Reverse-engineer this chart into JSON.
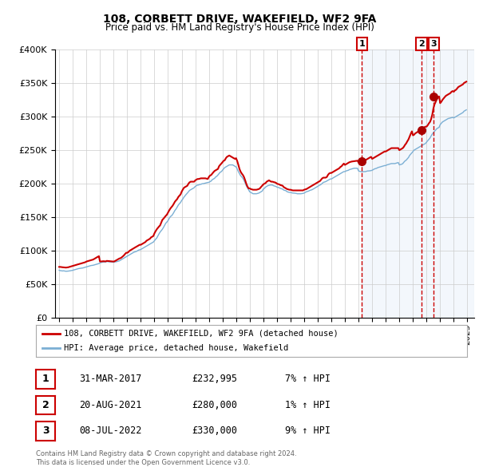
{
  "title": "108, CORBETT DRIVE, WAKEFIELD, WF2 9FA",
  "subtitle": "Price paid vs. HM Land Registry's House Price Index (HPI)",
  "ylim": [
    0,
    400000
  ],
  "yticks": [
    0,
    50000,
    100000,
    150000,
    200000,
    250000,
    300000,
    350000,
    400000
  ],
  "ytick_labels": [
    "£0",
    "£50K",
    "£100K",
    "£150K",
    "£200K",
    "£250K",
    "£300K",
    "£350K",
    "£400K"
  ],
  "xlim_start": 1994.7,
  "xlim_end": 2025.5,
  "xticks": [
    1995,
    1996,
    1997,
    1998,
    1999,
    2000,
    2001,
    2002,
    2003,
    2004,
    2005,
    2006,
    2007,
    2008,
    2009,
    2010,
    2011,
    2012,
    2013,
    2014,
    2015,
    2016,
    2017,
    2018,
    2019,
    2020,
    2021,
    2022,
    2023,
    2024,
    2025
  ],
  "price_color": "#cc0000",
  "hpi_color": "#7bafd4",
  "hpi_fill_color": "#ddeeff",
  "sale_marker_color": "#aa0000",
  "vline_color1": "#cc0000",
  "vline_color23": "#cc0000",
  "annotation_box_color": "#cc0000",
  "background_color": "#ffffff",
  "chart_bg_shaded": "#e8f0fa",
  "grid_color": "#cccccc",
  "sale1_x": 2017.25,
  "sale1_y": 232995,
  "sale1_label": "1",
  "sale1_date": "31-MAR-2017",
  "sale1_price": "£232,995",
  "sale1_hpi": "7% ↑ HPI",
  "sale2_x": 2021.63,
  "sale2_y": 280000,
  "sale2_label": "2",
  "sale2_date": "20-AUG-2021",
  "sale2_price": "£280,000",
  "sale2_hpi": "1% ↑ HPI",
  "sale3_x": 2022.52,
  "sale3_y": 330000,
  "sale3_label": "3",
  "sale3_date": "08-JUL-2022",
  "sale3_price": "£330,000",
  "sale3_hpi": "9% ↑ HPI",
  "legend_line1": "108, CORBETT DRIVE, WAKEFIELD, WF2 9FA (detached house)",
  "legend_line2": "HPI: Average price, detached house, Wakefield",
  "footer_line1": "Contains HM Land Registry data © Crown copyright and database right 2024.",
  "footer_line2": "This data is licensed under the Open Government Licence v3.0.",
  "hpi_data_years": [
    1995.0,
    1995.08,
    1995.17,
    1995.25,
    1995.33,
    1995.42,
    1995.5,
    1995.58,
    1995.67,
    1995.75,
    1995.83,
    1995.92,
    1996.0,
    1996.08,
    1996.17,
    1996.25,
    1996.33,
    1996.42,
    1996.5,
    1996.58,
    1996.67,
    1996.75,
    1996.83,
    1996.92,
    1997.0,
    1997.08,
    1997.17,
    1997.25,
    1997.33,
    1997.42,
    1997.5,
    1997.58,
    1997.67,
    1997.75,
    1997.83,
    1997.92,
    1998.0,
    1998.08,
    1998.17,
    1998.25,
    1998.33,
    1998.42,
    1998.5,
    1998.58,
    1998.67,
    1998.75,
    1998.83,
    1998.92,
    1999.0,
    1999.08,
    1999.17,
    1999.25,
    1999.33,
    1999.42,
    1999.5,
    1999.58,
    1999.67,
    1999.75,
    1999.83,
    1999.92,
    2000.0,
    2000.08,
    2000.17,
    2000.25,
    2000.33,
    2000.42,
    2000.5,
    2000.58,
    2000.67,
    2000.75,
    2000.83,
    2000.92,
    2001.0,
    2001.08,
    2001.17,
    2001.25,
    2001.33,
    2001.42,
    2001.5,
    2001.58,
    2001.67,
    2001.75,
    2001.83,
    2001.92,
    2002.0,
    2002.08,
    2002.17,
    2002.25,
    2002.33,
    2002.42,
    2002.5,
    2002.58,
    2002.67,
    2002.75,
    2002.83,
    2002.92,
    2003.0,
    2003.08,
    2003.17,
    2003.25,
    2003.33,
    2003.42,
    2003.5,
    2003.58,
    2003.67,
    2003.75,
    2003.83,
    2003.92,
    2004.0,
    2004.08,
    2004.17,
    2004.25,
    2004.33,
    2004.42,
    2004.5,
    2004.58,
    2004.67,
    2004.75,
    2004.83,
    2004.92,
    2005.0,
    2005.08,
    2005.17,
    2005.25,
    2005.33,
    2005.42,
    2005.5,
    2005.58,
    2005.67,
    2005.75,
    2005.83,
    2005.92,
    2006.0,
    2006.08,
    2006.17,
    2006.25,
    2006.33,
    2006.42,
    2006.5,
    2006.58,
    2006.67,
    2006.75,
    2006.83,
    2006.92,
    2007.0,
    2007.08,
    2007.17,
    2007.25,
    2007.33,
    2007.42,
    2007.5,
    2007.58,
    2007.67,
    2007.75,
    2007.83,
    2007.92,
    2008.0,
    2008.08,
    2008.17,
    2008.25,
    2008.33,
    2008.42,
    2008.5,
    2008.58,
    2008.67,
    2008.75,
    2008.83,
    2008.92,
    2009.0,
    2009.08,
    2009.17,
    2009.25,
    2009.33,
    2009.42,
    2009.5,
    2009.58,
    2009.67,
    2009.75,
    2009.83,
    2009.92,
    2010.0,
    2010.08,
    2010.17,
    2010.25,
    2010.33,
    2010.42,
    2010.5,
    2010.58,
    2010.67,
    2010.75,
    2010.83,
    2010.92,
    2011.0,
    2011.08,
    2011.17,
    2011.25,
    2011.33,
    2011.42,
    2011.5,
    2011.58,
    2011.67,
    2011.75,
    2011.83,
    2011.92,
    2012.0,
    2012.08,
    2012.17,
    2012.25,
    2012.33,
    2012.42,
    2012.5,
    2012.58,
    2012.67,
    2012.75,
    2012.83,
    2012.92,
    2013.0,
    2013.08,
    2013.17,
    2013.25,
    2013.33,
    2013.42,
    2013.5,
    2013.58,
    2013.67,
    2013.75,
    2013.83,
    2013.92,
    2014.0,
    2014.08,
    2014.17,
    2014.25,
    2014.33,
    2014.42,
    2014.5,
    2014.58,
    2014.67,
    2014.75,
    2014.83,
    2014.92,
    2015.0,
    2015.08,
    2015.17,
    2015.25,
    2015.33,
    2015.42,
    2015.5,
    2015.58,
    2015.67,
    2015.75,
    2015.83,
    2015.92,
    2016.0,
    2016.08,
    2016.17,
    2016.25,
    2016.33,
    2016.42,
    2016.5,
    2016.58,
    2016.67,
    2016.75,
    2016.83,
    2016.92,
    2017.0,
    2017.08,
    2017.17,
    2017.25,
    2017.33,
    2017.42,
    2017.5,
    2017.58,
    2017.67,
    2017.75,
    2017.83,
    2017.92,
    2018.0,
    2018.08,
    2018.17,
    2018.25,
    2018.33,
    2018.42,
    2018.5,
    2018.58,
    2018.67,
    2018.75,
    2018.83,
    2018.92,
    2019.0,
    2019.08,
    2019.17,
    2019.25,
    2019.33,
    2019.42,
    2019.5,
    2019.58,
    2019.67,
    2019.75,
    2019.83,
    2019.92,
    2020.0,
    2020.08,
    2020.17,
    2020.25,
    2020.33,
    2020.42,
    2020.5,
    2020.58,
    2020.67,
    2020.75,
    2020.83,
    2020.92,
    2021.0,
    2021.08,
    2021.17,
    2021.25,
    2021.33,
    2021.42,
    2021.5,
    2021.58,
    2021.67,
    2021.75,
    2021.83,
    2021.92,
    2022.0,
    2022.08,
    2022.17,
    2022.25,
    2022.33,
    2022.42,
    2022.5,
    2022.58,
    2022.67,
    2022.75,
    2022.83,
    2022.92,
    2023.0,
    2023.08,
    2023.17,
    2023.25,
    2023.33,
    2023.42,
    2023.5,
    2023.58,
    2023.67,
    2023.75,
    2023.83,
    2023.92,
    2024.0,
    2024.08,
    2024.17,
    2024.25,
    2024.33,
    2024.42,
    2024.5,
    2024.58,
    2024.67,
    2024.75,
    2024.83,
    2024.92
  ],
  "hpi_data_values": [
    71000,
    70500,
    70200,
    70000,
    70200,
    69800,
    69500,
    69600,
    69800,
    70000,
    70300,
    70600,
    71000,
    71500,
    72000,
    72500,
    73000,
    73500,
    73800,
    74000,
    74200,
    74500,
    75000,
    75500,
    76000,
    76500,
    77000,
    77500,
    78000,
    78300,
    78500,
    79000,
    79500,
    80000,
    80500,
    81000,
    82000,
    82500,
    83000,
    83200,
    83300,
    83500,
    84000,
    83800,
    83700,
    83500,
    83300,
    83100,
    83000,
    83300,
    83600,
    84000,
    84500,
    85000,
    86000,
    87000,
    88000,
    89000,
    90000,
    91000,
    92000,
    93000,
    94000,
    95000,
    96000,
    97000,
    98000,
    98500,
    99000,
    100000,
    101000,
    101500,
    102000,
    103000,
    104000,
    105000,
    106000,
    107000,
    108000,
    109000,
    110000,
    111000,
    112000,
    113000,
    115000,
    117000,
    119000,
    122000,
    125000,
    128000,
    130000,
    132000,
    135000,
    138000,
    141000,
    143000,
    145000,
    148000,
    151000,
    152000,
    154000,
    157000,
    160000,
    162000,
    165000,
    168000,
    170000,
    172000,
    175000,
    177000,
    180000,
    182000,
    184000,
    186000,
    188000,
    190000,
    191000,
    192000,
    193000,
    194000,
    196000,
    197000,
    198000,
    198000,
    199000,
    199000,
    200000,
    200000,
    200500,
    201000,
    201500,
    201800,
    202000,
    203000,
    204000,
    206000,
    207000,
    208000,
    210000,
    211000,
    213000,
    215000,
    217000,
    218000,
    220000,
    222000,
    224000,
    225000,
    226000,
    227000,
    228000,
    228000,
    228000,
    228000,
    227000,
    226000,
    225000,
    222000,
    218000,
    215000,
    212000,
    210000,
    208000,
    205000,
    201000,
    197000,
    194000,
    191000,
    188000,
    187000,
    186000,
    185000,
    185000,
    185000,
    185000,
    185500,
    186000,
    187000,
    188000,
    189000,
    192000,
    193000,
    195000,
    196000,
    197000,
    197500,
    198000,
    198000,
    198000,
    197000,
    196500,
    196000,
    195000,
    194500,
    194000,
    193000,
    192500,
    192000,
    190500,
    190000,
    189500,
    188000,
    187500,
    187000,
    187000,
    186500,
    186000,
    186000,
    185800,
    185500,
    185000,
    185000,
    185000,
    185000,
    185200,
    185500,
    186000,
    187000,
    188000,
    188500,
    189000,
    190000,
    190500,
    191000,
    192000,
    193000,
    194000,
    195000,
    196000,
    197000,
    198000,
    199000,
    200500,
    202000,
    202500,
    203000,
    204000,
    205000,
    206000,
    207000,
    207000,
    208000,
    209000,
    210000,
    211000,
    212000,
    213000,
    214000,
    215000,
    216000,
    217000,
    218000,
    218000,
    219000,
    219500,
    220000,
    221000,
    221500,
    222000,
    222500,
    223000,
    223000,
    223000,
    223000,
    219000,
    218500,
    218000,
    218000,
    218000,
    218000,
    218000,
    218500,
    219000,
    219000,
    219200,
    219500,
    220000,
    221000,
    222000,
    222500,
    223000,
    224000,
    224500,
    225000,
    225500,
    226000,
    226500,
    227000,
    227000,
    228000,
    228500,
    229000,
    229500,
    230000,
    230000,
    230000,
    230000,
    230500,
    231000,
    231500,
    228000,
    228500,
    229000,
    230000,
    232000,
    234000,
    235000,
    237000,
    239000,
    242000,
    244000,
    246000,
    248000,
    250000,
    251000,
    252000,
    253000,
    254000,
    255000,
    256000,
    257000,
    258000,
    259000,
    260000,
    262000,
    264000,
    266000,
    268000,
    271000,
    274000,
    276000,
    278000,
    280000,
    282000,
    283000,
    284000,
    288000,
    290000,
    292000,
    293000,
    294000,
    295000,
    296000,
    297000,
    297500,
    298000,
    298500,
    298800,
    298000,
    299000,
    300000,
    301000,
    302000,
    303000,
    304000,
    305000,
    306000,
    308000,
    309000,
    310000
  ],
  "price_data_years": [
    1995.0,
    1995.08,
    1995.17,
    1995.25,
    1995.33,
    1995.42,
    1995.5,
    1995.58,
    1995.67,
    1995.75,
    1995.83,
    1995.92,
    1996.0,
    1996.08,
    1996.17,
    1996.25,
    1996.33,
    1996.42,
    1996.5,
    1996.58,
    1996.67,
    1996.75,
    1996.83,
    1996.92,
    1997.0,
    1997.08,
    1997.17,
    1997.25,
    1997.33,
    1997.42,
    1997.5,
    1997.58,
    1997.67,
    1997.75,
    1997.83,
    1997.92,
    1998.0,
    1998.08,
    1998.17,
    1998.25,
    1998.33,
    1998.42,
    1998.5,
    1998.58,
    1998.67,
    1998.75,
    1998.83,
    1998.92,
    1999.0,
    1999.08,
    1999.17,
    1999.25,
    1999.33,
    1999.42,
    1999.5,
    1999.58,
    1999.67,
    1999.75,
    1999.83,
    1999.92,
    2000.0,
    2000.08,
    2000.17,
    2000.25,
    2000.33,
    2000.42,
    2000.5,
    2000.58,
    2000.67,
    2000.75,
    2000.83,
    2000.92,
    2001.0,
    2001.08,
    2001.17,
    2001.25,
    2001.33,
    2001.42,
    2001.5,
    2001.58,
    2001.67,
    2001.75,
    2001.83,
    2001.92,
    2002.0,
    2002.08,
    2002.17,
    2002.25,
    2002.33,
    2002.42,
    2002.5,
    2002.58,
    2002.67,
    2002.75,
    2002.83,
    2002.92,
    2003.0,
    2003.08,
    2003.17,
    2003.25,
    2003.33,
    2003.42,
    2003.5,
    2003.58,
    2003.67,
    2003.75,
    2003.83,
    2003.92,
    2004.0,
    2004.08,
    2004.17,
    2004.25,
    2004.33,
    2004.42,
    2004.5,
    2004.58,
    2004.67,
    2004.75,
    2004.83,
    2004.92,
    2005.0,
    2005.08,
    2005.17,
    2005.25,
    2005.33,
    2005.42,
    2005.5,
    2005.58,
    2005.67,
    2005.75,
    2005.83,
    2005.92,
    2006.0,
    2006.08,
    2006.17,
    2006.25,
    2006.33,
    2006.42,
    2006.5,
    2006.58,
    2006.67,
    2006.75,
    2006.83,
    2006.92,
    2007.0,
    2007.08,
    2007.17,
    2007.25,
    2007.33,
    2007.42,
    2007.5,
    2007.58,
    2007.67,
    2007.75,
    2007.83,
    2007.92,
    2008.0,
    2008.08,
    2008.17,
    2008.25,
    2008.33,
    2008.42,
    2008.5,
    2008.58,
    2008.67,
    2008.75,
    2008.83,
    2008.92,
    2009.0,
    2009.08,
    2009.17,
    2009.25,
    2009.33,
    2009.42,
    2009.5,
    2009.58,
    2009.67,
    2009.75,
    2009.83,
    2009.92,
    2010.0,
    2010.08,
    2010.17,
    2010.25,
    2010.33,
    2010.42,
    2010.5,
    2010.58,
    2010.67,
    2010.75,
    2010.83,
    2010.92,
    2011.0,
    2011.08,
    2011.17,
    2011.25,
    2011.33,
    2011.42,
    2011.5,
    2011.58,
    2011.67,
    2011.75,
    2011.83,
    2011.92,
    2012.0,
    2012.08,
    2012.17,
    2012.25,
    2012.33,
    2012.42,
    2012.5,
    2012.58,
    2012.67,
    2012.75,
    2012.83,
    2012.92,
    2013.0,
    2013.08,
    2013.17,
    2013.25,
    2013.33,
    2013.42,
    2013.5,
    2013.58,
    2013.67,
    2013.75,
    2013.83,
    2013.92,
    2014.0,
    2014.08,
    2014.17,
    2014.25,
    2014.33,
    2014.42,
    2014.5,
    2014.58,
    2014.67,
    2014.75,
    2014.83,
    2014.92,
    2015.0,
    2015.08,
    2015.17,
    2015.25,
    2015.33,
    2015.42,
    2015.5,
    2015.58,
    2015.67,
    2015.75,
    2015.83,
    2015.92,
    2016.0,
    2016.08,
    2016.17,
    2016.25,
    2016.33,
    2016.42,
    2016.5,
    2016.58,
    2016.67,
    2016.75,
    2016.83,
    2016.92,
    2017.0,
    2017.08,
    2017.17,
    2017.25,
    2017.33,
    2017.42,
    2017.5,
    2017.58,
    2017.67,
    2017.75,
    2017.83,
    2017.92,
    2018.0,
    2018.08,
    2018.17,
    2018.25,
    2018.33,
    2018.42,
    2018.5,
    2018.58,
    2018.67,
    2018.75,
    2018.83,
    2018.92,
    2019.0,
    2019.08,
    2019.17,
    2019.25,
    2019.33,
    2019.42,
    2019.5,
    2019.58,
    2019.67,
    2019.75,
    2019.83,
    2019.92,
    2020.0,
    2020.08,
    2020.17,
    2020.25,
    2020.33,
    2020.42,
    2020.5,
    2020.58,
    2020.67,
    2020.75,
    2020.83,
    2020.92,
    2021.0,
    2021.08,
    2021.17,
    2021.25,
    2021.33,
    2021.42,
    2021.5,
    2021.58,
    2021.67,
    2021.75,
    2021.83,
    2021.92,
    2022.0,
    2022.08,
    2022.17,
    2022.25,
    2022.33,
    2022.42,
    2022.5,
    2022.58,
    2022.67,
    2022.75,
    2022.83,
    2022.92,
    2023.0,
    2023.08,
    2023.17,
    2023.25,
    2023.33,
    2023.42,
    2023.5,
    2023.58,
    2023.67,
    2023.75,
    2023.83,
    2023.92,
    2024.0,
    2024.08,
    2024.17,
    2024.25,
    2024.33,
    2024.42,
    2024.5,
    2024.58,
    2024.67,
    2024.75,
    2024.83,
    2024.92
  ],
  "price_data_values": [
    76000,
    76000,
    75800,
    75500,
    75300,
    75200,
    75000,
    75200,
    75500,
    76000,
    76500,
    77000,
    77500,
    78000,
    78500,
    79000,
    79500,
    80000,
    80500,
    81000,
    81500,
    82000,
    82500,
    83000,
    84000,
    84500,
    85000,
    85500,
    86000,
    86500,
    87000,
    88000,
    89000,
    90000,
    91000,
    92000,
    84000,
    84200,
    84400,
    84500,
    84300,
    84200,
    85000,
    84800,
    84600,
    84500,
    84300,
    84100,
    84000,
    84500,
    85500,
    86500,
    87500,
    88500,
    89000,
    90000,
    91500,
    93000,
    95000,
    97000,
    97000,
    98000,
    100000,
    101000,
    102000,
    103000,
    104000,
    105000,
    106000,
    107000,
    108000,
    109000,
    109000,
    110000,
    111000,
    112000,
    113000,
    115000,
    116000,
    117000,
    118000,
    120000,
    121000,
    122000,
    126000,
    129000,
    132000,
    134000,
    136000,
    138000,
    142000,
    146000,
    148000,
    150000,
    152000,
    154000,
    157000,
    160000,
    163000,
    165000,
    167000,
    170000,
    173000,
    175000,
    177000,
    180000,
    182000,
    184000,
    188000,
    191000,
    194000,
    195000,
    196000,
    197000,
    200000,
    202000,
    203000,
    203000,
    203000,
    203000,
    205000,
    206000,
    207000,
    207000,
    207500,
    208000,
    208000,
    208000,
    208000,
    208000,
    207500,
    207000,
    210000,
    212000,
    213000,
    215000,
    217000,
    219000,
    220000,
    221000,
    222000,
    226000,
    228000,
    230000,
    232000,
    234000,
    235000,
    238000,
    240000,
    241000,
    242000,
    241000,
    240000,
    239000,
    238000,
    237000,
    238000,
    234000,
    228000,
    222000,
    218000,
    215000,
    213000,
    210000,
    205000,
    200000,
    196000,
    193000,
    193000,
    192000,
    191500,
    191000,
    191000,
    191000,
    191000,
    191500,
    192000,
    193000,
    195000,
    197000,
    199000,
    200000,
    201000,
    203000,
    204000,
    205000,
    204000,
    203000,
    203000,
    202500,
    202000,
    201500,
    200000,
    199500,
    199000,
    198000,
    197500,
    197000,
    195000,
    194000,
    193000,
    192000,
    191500,
    191000,
    191000,
    190500,
    190000,
    190000,
    190000,
    190000,
    190000,
    190000,
    190000,
    190000,
    190000,
    190000,
    191000,
    191500,
    192000,
    193000,
    194000,
    195000,
    196000,
    197000,
    198000,
    199000,
    200000,
    201000,
    202000,
    203000,
    204000,
    206000,
    208000,
    209000,
    209000,
    209000,
    210000,
    213000,
    215000,
    216000,
    216000,
    217000,
    218000,
    219000,
    220000,
    221000,
    222000,
    223000,
    225000,
    226000,
    228000,
    230000,
    228000,
    229000,
    230000,
    231000,
    232000,
    232500,
    233000,
    233200,
    233500,
    233800,
    234000,
    234200,
    232000,
    232200,
    232500,
    232995,
    233500,
    234000,
    235000,
    236000,
    237000,
    238000,
    239000,
    240000,
    237000,
    238000,
    239000,
    240000,
    241000,
    242000,
    243000,
    244000,
    245000,
    246000,
    247000,
    248000,
    248000,
    249000,
    250000,
    251000,
    252000,
    253000,
    253000,
    253000,
    253000,
    253000,
    253000,
    253000,
    250000,
    251000,
    252000,
    253000,
    255000,
    258000,
    260000,
    263000,
    266000,
    270000,
    274000,
    278000,
    272000,
    273000,
    275000,
    276000,
    277000,
    279000,
    280000,
    281000,
    282000,
    283000,
    284000,
    285000,
    285000,
    287000,
    290000,
    292000,
    296000,
    303000,
    312000,
    318000,
    322000,
    326000,
    328000,
    330000,
    320000,
    322000,
    325000,
    327000,
    329000,
    331000,
    332000,
    333000,
    334000,
    335000,
    337000,
    338000,
    337000,
    339000,
    340000,
    342000,
    344000,
    345000,
    346000,
    347000,
    348000,
    350000,
    351000,
    352000
  ]
}
